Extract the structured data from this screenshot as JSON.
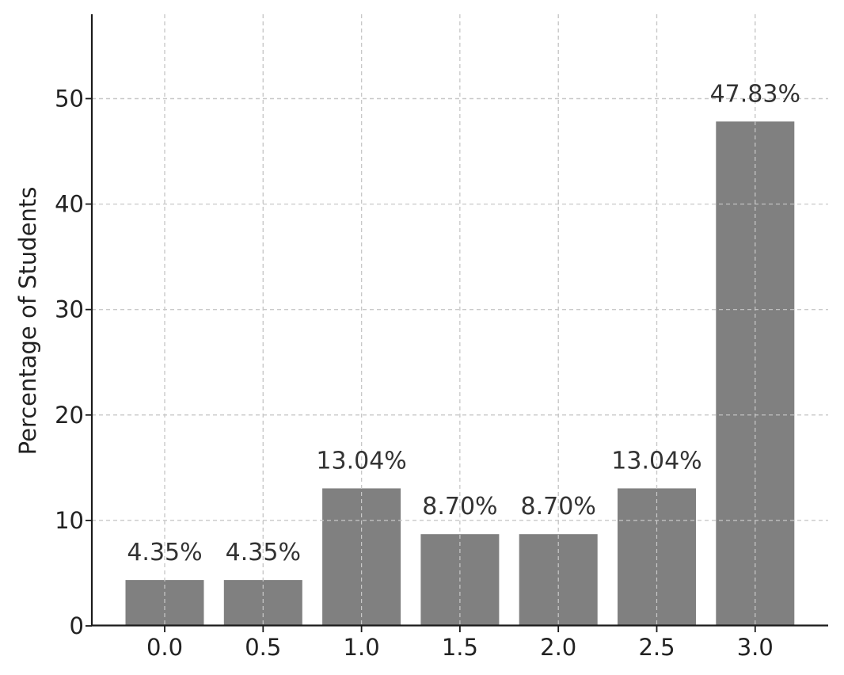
{
  "chart_data": {
    "type": "bar",
    "categories": [
      "0.0",
      "0.5",
      "1.0",
      "1.5",
      "2.0",
      "2.5",
      "3.0"
    ],
    "values": [
      4.35,
      4.35,
      13.04,
      8.7,
      8.7,
      13.04,
      47.83
    ],
    "data_labels": [
      "4.35%",
      "4.35%",
      "13.04%",
      "8.70%",
      "8.70%",
      "13.04%",
      "47.83%"
    ],
    "title": "",
    "xlabel": "",
    "ylabel": "Percentage of Students",
    "ylim": [
      0,
      58
    ],
    "yticks": [
      "0",
      "10",
      "20",
      "30",
      "40",
      "50"
    ],
    "grid": true,
    "bar_color": "#808080"
  }
}
